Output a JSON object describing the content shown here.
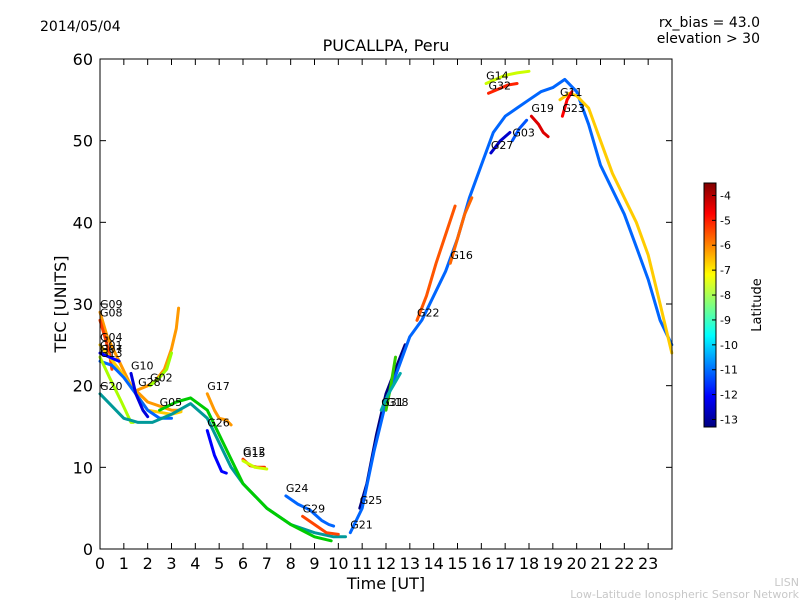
{
  "header": {
    "date": "2014/05/04",
    "rx_bias": "rx_bias = 43.0",
    "elevation": "elevation > 30"
  },
  "watermark": {
    "line1": "LISN",
    "line2": "Low-Latitude Ionospheric Sensor Network"
  },
  "chart_data": {
    "type": "line",
    "title": "PUCALLPA, Peru",
    "xlabel": "Time [UT]",
    "ylabel": "TEC [UNITS]",
    "xlim": [
      0,
      24
    ],
    "ylim": [
      0,
      60
    ],
    "xticks": [
      "0",
      "1",
      "2",
      "3",
      "4",
      "5",
      "6",
      "7",
      "8",
      "9",
      "10",
      "11",
      "12",
      "13",
      "14",
      "15",
      "16",
      "17",
      "18",
      "19",
      "20",
      "21",
      "22",
      "23"
    ],
    "yticks": [
      "0",
      "10",
      "20",
      "30",
      "40",
      "50",
      "60"
    ],
    "grid": false,
    "colorbar": {
      "label": "Latitude",
      "range": [
        -13.3,
        -3.5
      ],
      "ticks": [
        "-4",
        "-5",
        "-6",
        "-7",
        "-8",
        "-9",
        "-10",
        "-11",
        "-12",
        "-13"
      ],
      "colormap": [
        "#00007f",
        "#0000ff",
        "#007fff",
        "#00ffff",
        "#7fff7f",
        "#ffff00",
        "#ff7f00",
        "#ff0000",
        "#7f0000"
      ]
    },
    "series": [
      {
        "name": "G09",
        "color": "#ff9900",
        "points": [
          [
            0,
            29
          ],
          [
            0.3,
            26
          ],
          [
            0.8,
            23
          ],
          [
            1.3,
            20
          ],
          [
            2,
            18
          ],
          [
            3,
            17
          ],
          [
            3.4,
            17
          ]
        ]
      },
      {
        "name": "G08",
        "color": "#ff4000",
        "points": [
          [
            0,
            28
          ],
          [
            0.2,
            26
          ],
          [
            0.4,
            24
          ],
          [
            0.5,
            22
          ]
        ]
      },
      {
        "name": "G04",
        "color": "#ffcc00",
        "points": [
          [
            0,
            25
          ],
          [
            0.4,
            23.5
          ],
          [
            0.8,
            22
          ],
          [
            1.4,
            19.5
          ],
          [
            2,
            17
          ],
          [
            3,
            16.5
          ],
          [
            3.4,
            16.8
          ]
        ]
      },
      {
        "name": "G01",
        "color": "#0000ff",
        "points": [
          [
            0,
            24
          ],
          [
            0.4,
            23.5
          ],
          [
            0.8,
            23
          ]
        ]
      },
      {
        "name": "G13",
        "color": "#0066ff",
        "points": [
          [
            0,
            23
          ],
          [
            0.5,
            22.5
          ],
          [
            1,
            21
          ],
          [
            1.5,
            19
          ],
          [
            2,
            17
          ],
          [
            2.5,
            16
          ],
          [
            3,
            16
          ]
        ]
      },
      {
        "name": "G07",
        "color": "#aaff00",
        "points": [
          [
            0,
            23.5
          ],
          [
            0.4,
            21
          ],
          [
            0.9,
            18
          ],
          [
            1.3,
            15.5
          ],
          [
            1.4,
            15.5
          ]
        ]
      },
      {
        "name": "G20",
        "color": "#009999",
        "points": [
          [
            0,
            19
          ],
          [
            0.5,
            17.5
          ],
          [
            1,
            16
          ],
          [
            1.6,
            15.5
          ],
          [
            2.2,
            15.5
          ],
          [
            3,
            16.5
          ],
          [
            3.8,
            17.8
          ],
          [
            4.5,
            16
          ],
          [
            5,
            13
          ],
          [
            5.5,
            10
          ],
          [
            6,
            8
          ],
          [
            7,
            5
          ],
          [
            8,
            3
          ],
          [
            9,
            2
          ],
          [
            9.8,
            1.5
          ],
          [
            10.3,
            1.5
          ]
        ]
      },
      {
        "name": "G10",
        "color": "#0000dd",
        "points": [
          [
            1.3,
            21.5
          ],
          [
            1.5,
            19
          ],
          [
            1.8,
            17
          ],
          [
            2,
            16.2
          ]
        ]
      },
      {
        "name": "G28",
        "color": "#ff9900",
        "points": [
          [
            1.6,
            19.5
          ],
          [
            2,
            20
          ],
          [
            2.3,
            20.5
          ],
          [
            2.7,
            22
          ],
          [
            3,
            24.5
          ],
          [
            3.2,
            27
          ],
          [
            3.3,
            29.5
          ]
        ]
      },
      {
        "name": "G02",
        "color": "#99ff00",
        "points": [
          [
            2.1,
            20
          ],
          [
            2.5,
            21
          ],
          [
            2.8,
            22
          ],
          [
            3,
            24
          ]
        ]
      },
      {
        "name": "G05",
        "color": "#00cc00",
        "points": [
          [
            2.5,
            17
          ],
          [
            3.2,
            18
          ],
          [
            3.8,
            18.5
          ],
          [
            4.5,
            17
          ],
          [
            5,
            14
          ],
          [
            5.5,
            11
          ],
          [
            6,
            8
          ],
          [
            7,
            5
          ],
          [
            8,
            3
          ],
          [
            9,
            1.5
          ],
          [
            9.7,
            1
          ]
        ]
      },
      {
        "name": "G17",
        "color": "#ff9900",
        "points": [
          [
            4.5,
            19
          ],
          [
            4.8,
            17
          ],
          [
            5,
            16
          ],
          [
            5.3,
            15.8
          ],
          [
            5.5,
            15.2
          ]
        ]
      },
      {
        "name": "G26",
        "color": "#0000ff",
        "points": [
          [
            4.5,
            14.5
          ],
          [
            4.8,
            11.5
          ],
          [
            5.1,
            9.5
          ],
          [
            5.3,
            9.3
          ]
        ]
      },
      {
        "name": "G12",
        "color": "#ff3300",
        "points": [
          [
            6,
            11
          ],
          [
            6.3,
            10.2
          ],
          [
            6.6,
            10
          ],
          [
            6.9,
            10
          ]
        ]
      },
      {
        "name": "G15",
        "color": "#ccff00",
        "points": [
          [
            6,
            10.8
          ],
          [
            6.5,
            10
          ],
          [
            7,
            9.8
          ]
        ]
      },
      {
        "name": "G24",
        "color": "#0066ff",
        "points": [
          [
            7.8,
            6.5
          ],
          [
            8.3,
            5.5
          ],
          [
            8.8,
            4.8
          ],
          [
            9.3,
            3.5
          ],
          [
            9.6,
            3
          ],
          [
            9.8,
            2.8
          ]
        ]
      },
      {
        "name": "G29",
        "color": "#ff4400",
        "points": [
          [
            8.5,
            4
          ],
          [
            9,
            3
          ],
          [
            9.5,
            2
          ],
          [
            10,
            1.8
          ]
        ]
      },
      {
        "name": "G25",
        "color": "#00007f",
        "points": [
          [
            10.9,
            5
          ],
          [
            11.2,
            8
          ],
          [
            11.6,
            14
          ],
          [
            12,
            19
          ],
          [
            12.4,
            22
          ],
          [
            12.8,
            25
          ]
        ]
      },
      {
        "name": "G21",
        "color": "#0066ff",
        "points": [
          [
            10.5,
            2
          ],
          [
            11,
            5
          ],
          [
            11.5,
            12
          ],
          [
            12,
            18
          ],
          [
            12.5,
            22
          ],
          [
            13,
            26
          ],
          [
            13.5,
            28
          ],
          [
            14,
            31
          ],
          [
            14.5,
            34
          ],
          [
            15,
            38
          ],
          [
            15.5,
            43
          ],
          [
            16,
            47
          ],
          [
            16.5,
            51
          ],
          [
            17,
            53
          ],
          [
            17.5,
            54
          ],
          [
            18,
            55
          ],
          [
            18.5,
            56
          ],
          [
            19,
            56.5
          ],
          [
            19.5,
            57.5
          ],
          [
            20,
            56
          ],
          [
            20.5,
            52
          ],
          [
            21,
            47
          ],
          [
            21.5,
            44
          ],
          [
            22,
            41
          ],
          [
            22.5,
            37
          ],
          [
            23,
            33
          ],
          [
            23.5,
            28
          ],
          [
            23.99,
            25
          ]
        ]
      },
      {
        "name": "G18",
        "color": "#33cc00",
        "points": [
          [
            12,
            17
          ],
          [
            12.2,
            20
          ],
          [
            12.4,
            23.5
          ]
        ]
      },
      {
        "name": "G31",
        "color": "#00aaaa",
        "points": [
          [
            11.8,
            17
          ],
          [
            12.1,
            19
          ],
          [
            12.3,
            20
          ],
          [
            12.6,
            21.5
          ]
        ]
      },
      {
        "name": "G22",
        "color": "#ff5500",
        "points": [
          [
            13.3,
            28
          ],
          [
            13.7,
            31
          ],
          [
            14.1,
            35
          ],
          [
            14.5,
            38.5
          ],
          [
            14.9,
            42
          ]
        ]
      },
      {
        "name": "G16",
        "color": "#ff6600",
        "points": [
          [
            14.7,
            35
          ],
          [
            15,
            38
          ],
          [
            15.3,
            41
          ],
          [
            15.6,
            43
          ]
        ]
      },
      {
        "name": "G27",
        "color": "#0000cc",
        "points": [
          [
            16.4,
            48.5
          ],
          [
            16.8,
            50
          ],
          [
            17.2,
            51
          ]
        ]
      },
      {
        "name": "G03",
        "color": "#0055ff",
        "points": [
          [
            17.3,
            50
          ],
          [
            17.6,
            51.5
          ],
          [
            17.9,
            52.5
          ]
        ]
      },
      {
        "name": "G19",
        "color": "#dd0000",
        "points": [
          [
            18.1,
            53
          ],
          [
            18.4,
            52
          ],
          [
            18.6,
            51
          ],
          [
            18.8,
            50.5
          ]
        ]
      },
      {
        "name": "G14",
        "color": "#ccff00",
        "points": [
          [
            16.2,
            57
          ],
          [
            16.6,
            57.5
          ],
          [
            17,
            58
          ],
          [
            17.5,
            58.3
          ],
          [
            18,
            58.5
          ]
        ]
      },
      {
        "name": "G32",
        "color": "#ff2200",
        "points": [
          [
            16.3,
            55.8
          ],
          [
            16.7,
            56.3
          ],
          [
            17.1,
            56.8
          ],
          [
            17.5,
            57
          ]
        ]
      },
      {
        "name": "G11",
        "color": "#ffcc00",
        "points": [
          [
            19.3,
            55
          ],
          [
            19.7,
            55.8
          ],
          [
            20,
            55.5
          ],
          [
            20.5,
            54
          ],
          [
            21,
            50
          ],
          [
            21.5,
            46
          ],
          [
            22,
            43
          ],
          [
            22.5,
            40
          ],
          [
            23,
            36
          ],
          [
            23.5,
            30
          ],
          [
            23.99,
            24
          ]
        ]
      },
      {
        "name": "G23",
        "color": "#ff0000",
        "points": [
          [
            19.4,
            53
          ],
          [
            19.6,
            55
          ],
          [
            19.8,
            56
          ]
        ]
      }
    ]
  }
}
